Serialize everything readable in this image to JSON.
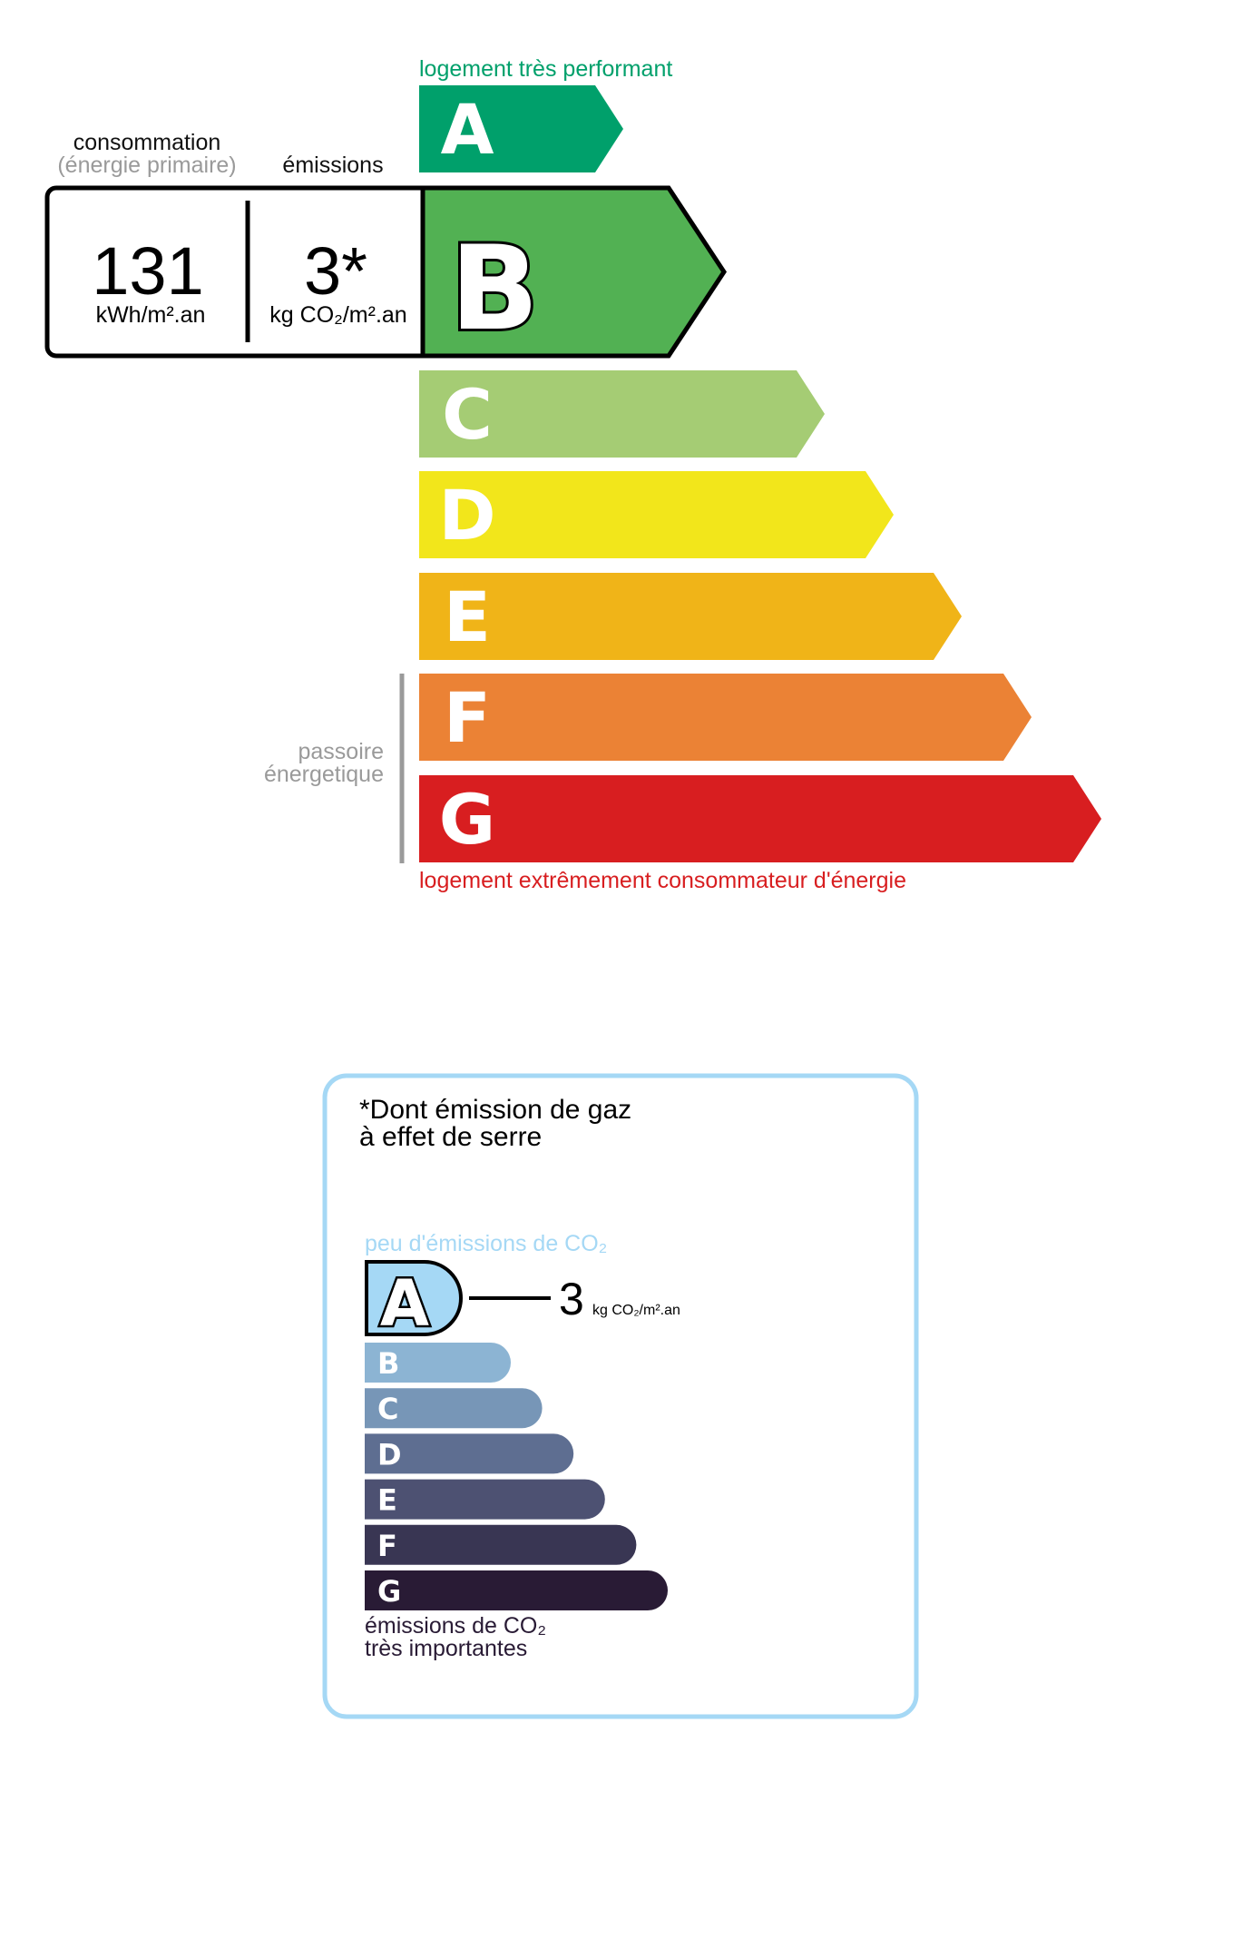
{
  "energy": {
    "top_label": "logement très performant",
    "bottom_label": "logement extrêmement consommateur d'énergie",
    "passoire_line1": "passoire",
    "passoire_line2": "énergetique",
    "consumption_label": "consommation",
    "consumption_sublabel": "(énergie primaire)",
    "emissions_label": "émissions",
    "consumption_value": "131",
    "consumption_unit": "kWh/m².an",
    "emissions_value": "3*",
    "emissions_unit": "kg CO₂/m².an",
    "current_class": "B",
    "classes": [
      {
        "letter": "A",
        "color": "#00a06b"
      },
      {
        "letter": "B",
        "color": "#52b153"
      },
      {
        "letter": "C",
        "color": "#a5cc74"
      },
      {
        "letter": "D",
        "color": "#f2e61b"
      },
      {
        "letter": "E",
        "color": "#f0b418"
      },
      {
        "letter": "F",
        "color": "#eb8235"
      },
      {
        "letter": "G",
        "color": "#d81e20"
      }
    ],
    "top_label_color": "#00a06b",
    "bottom_label_color": "#d81e20"
  },
  "ges": {
    "title_line1": "*Dont émission de gaz",
    "title_line2": "à effet de serre",
    "top_label": "peu d'émissions de CO₂",
    "bottom_line1": "émissions de CO₂",
    "bottom_line2": "très importantes",
    "value": "3",
    "unit": "kg CO₂/m².an",
    "current_class": "A",
    "border_color": "#a5d8f5",
    "classes": [
      {
        "letter": "A",
        "color": "#a5d8f5"
      },
      {
        "letter": "B",
        "color": "#8cb4d3"
      },
      {
        "letter": "C",
        "color": "#7796b7"
      },
      {
        "letter": "D",
        "color": "#5e6e91"
      },
      {
        "letter": "E",
        "color": "#4d5172"
      },
      {
        "letter": "F",
        "color": "#393653"
      },
      {
        "letter": "G",
        "color": "#291b35"
      }
    ]
  }
}
